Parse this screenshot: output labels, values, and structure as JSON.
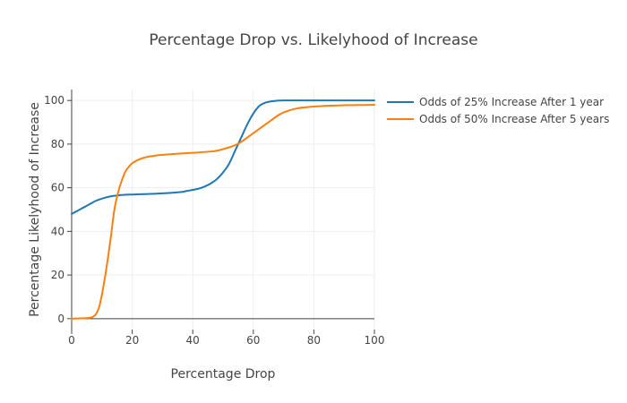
{
  "chart_data": {
    "type": "line",
    "title": "Percentage Drop vs. Likelyhood of Increase",
    "xlabel": "Percentage Drop",
    "ylabel": "Percentage Likelyhood of Increase",
    "xlim": [
      0,
      100
    ],
    "ylim": [
      -5,
      105
    ],
    "xticks": [
      0,
      20,
      40,
      60,
      80,
      100
    ],
    "yticks": [
      0,
      20,
      40,
      60,
      80,
      100
    ],
    "grid": true,
    "legend_position": "top-right-outside",
    "series": [
      {
        "name": "Odds of 25% Increase After 1 year",
        "color": "#1f77b4",
        "x": [
          0,
          2,
          4,
          6,
          8,
          10,
          12,
          14,
          16,
          18,
          20,
          24,
          28,
          32,
          36,
          38,
          42,
          44,
          46,
          48,
          50,
          52,
          54,
          56,
          58,
          60,
          62,
          64,
          66,
          68,
          70,
          75,
          80,
          85,
          90,
          95,
          100
        ],
        "y": [
          48,
          49.5,
          51,
          52.5,
          54,
          55,
          55.8,
          56.3,
          56.6,
          56.8,
          56.9,
          57.1,
          57.3,
          57.6,
          58,
          58.5,
          59.6,
          60.6,
          62,
          64,
          67,
          71,
          77,
          83,
          89,
          94,
          97.5,
          99,
          99.6,
          99.9,
          100,
          100,
          100,
          100,
          100,
          100,
          100
        ]
      },
      {
        "name": "Odds of 50% Increase After 5 years",
        "color": "#ff7f0e",
        "x": [
          0,
          2,
          4,
          6,
          7,
          8,
          9,
          10,
          11,
          12,
          13,
          14,
          15,
          16,
          17,
          18,
          19,
          20,
          22,
          24,
          26,
          28,
          30,
          35,
          40,
          45,
          48,
          52,
          54,
          56,
          58,
          60,
          62,
          64,
          66,
          68,
          70,
          72,
          75,
          80,
          85,
          90,
          95,
          100
        ],
        "y": [
          0,
          0.1,
          0.2,
          0.4,
          0.8,
          2,
          5,
          11,
          19,
          28,
          38,
          49,
          56,
          61,
          65,
          68,
          69.8,
          71.2,
          72.8,
          73.8,
          74.4,
          74.8,
          75.1,
          75.6,
          76,
          76.5,
          77,
          78.5,
          79.5,
          81,
          83,
          85,
          87,
          89,
          91,
          93,
          94.5,
          95.5,
          96.5,
          97.2,
          97.6,
          97.8,
          97.9,
          98
        ]
      }
    ]
  }
}
